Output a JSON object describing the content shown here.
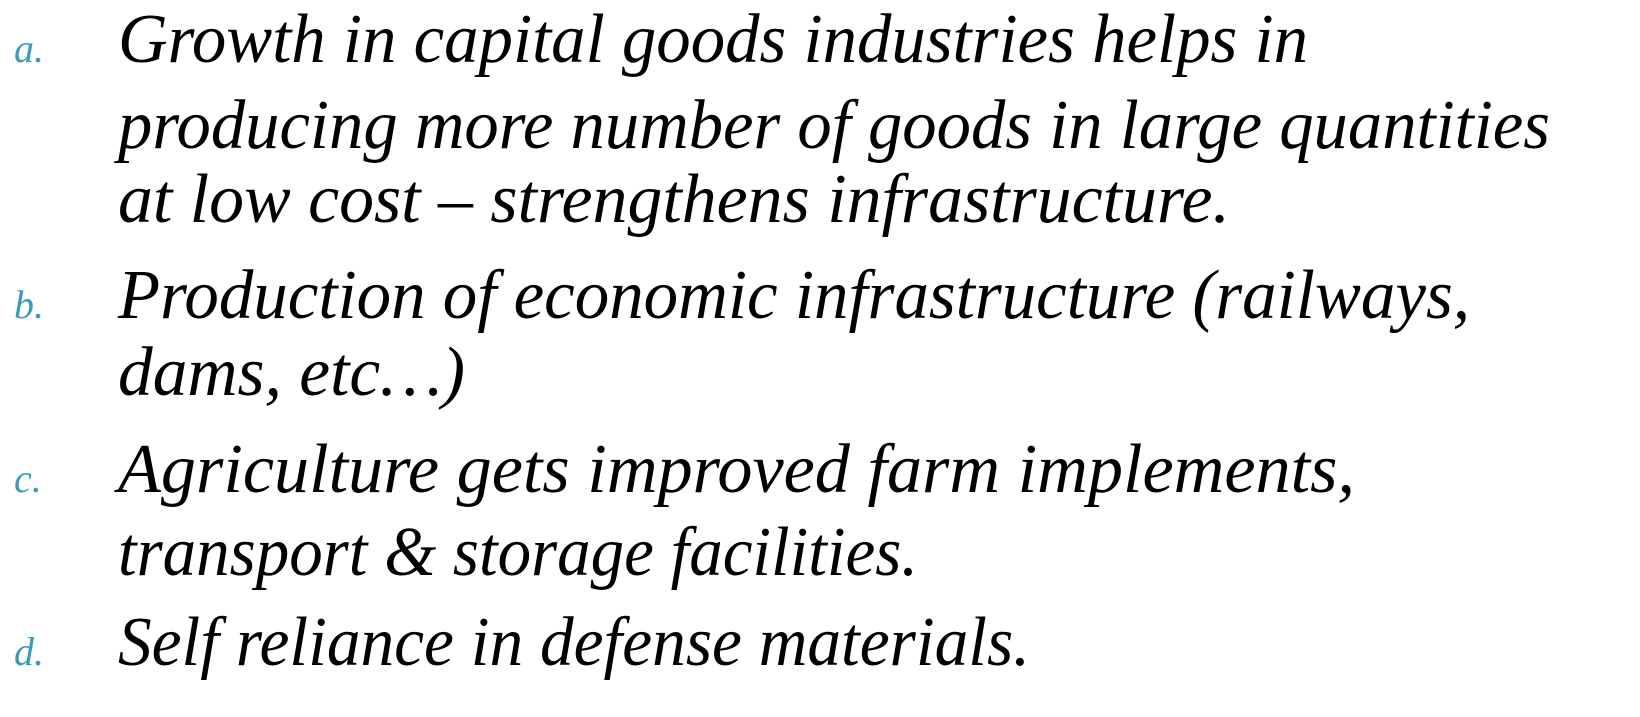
{
  "list": {
    "items": [
      {
        "marker": "a.",
        "lines": [
          "Growth in capital goods industries helps in",
          "producing more number of goods in large quantities",
          "at low cost – strengthens infrastructure."
        ]
      },
      {
        "marker": "b.",
        "lines": [
          "Production of economic infrastructure (railways,",
          "dams, etc…)"
        ]
      },
      {
        "marker": "c.",
        "lines": [
          "Agriculture gets improved farm implements,",
          "transport & storage facilities."
        ]
      },
      {
        "marker": "d.",
        "lines": [
          "Self reliance in defense materials."
        ]
      }
    ]
  }
}
